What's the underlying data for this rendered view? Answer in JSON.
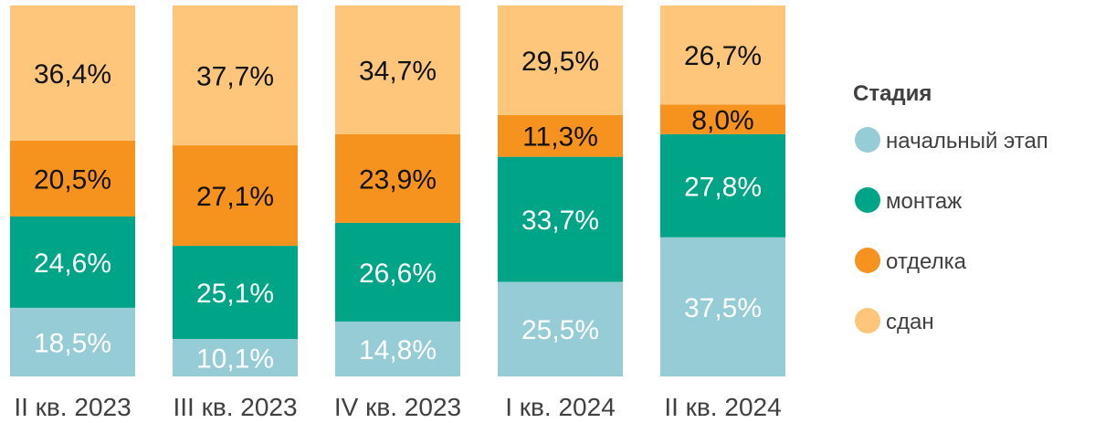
{
  "chart_data": {
    "type": "bar",
    "stacked": true,
    "normalized": true,
    "ylim": [
      0,
      100
    ],
    "categories": [
      "II кв. 2023",
      "III кв. 2023",
      "IV кв. 2023",
      "I кв. 2024",
      "II кв. 2024"
    ],
    "series": [
      {
        "name": "начальный этап",
        "color": "#96CCD5",
        "label_color": "#FFFFFF",
        "values": [
          18.5,
          10.1,
          14.8,
          25.5,
          37.5
        ],
        "labels": [
          "18,5%",
          "10,1%",
          "14,8%",
          "25,5%",
          "37,5%"
        ]
      },
      {
        "name": "монтаж",
        "color": "#00A486",
        "label_color": "#FFFFFF",
        "values": [
          24.6,
          25.1,
          26.6,
          33.7,
          27.8
        ],
        "labels": [
          "24,6%",
          "25,1%",
          "26,6%",
          "33,7%",
          "27,8%"
        ]
      },
      {
        "name": "отделка",
        "color": "#F6921E",
        "label_color": "#111111",
        "values": [
          20.5,
          27.1,
          23.9,
          11.3,
          8.0
        ],
        "labels": [
          "20,5%",
          "27,1%",
          "23,9%",
          "11,3%",
          "8,0%"
        ]
      },
      {
        "name": "сдан",
        "color": "#FDC67A",
        "label_color": "#111111",
        "values": [
          36.4,
          37.7,
          34.7,
          29.5,
          26.7
        ],
        "labels": [
          "36,4%",
          "37,7%",
          "34,7%",
          "29,5%",
          "26,7%"
        ]
      }
    ],
    "legend": {
      "title": "Стадия",
      "position": "right"
    },
    "grid": false
  }
}
